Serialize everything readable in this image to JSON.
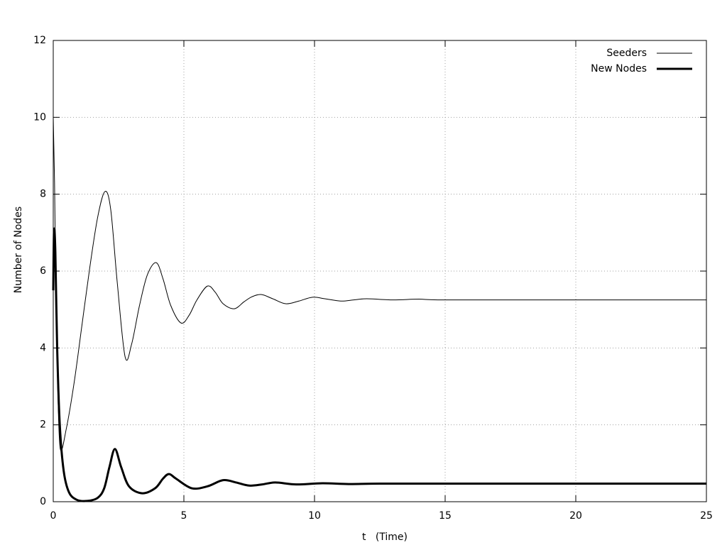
{
  "chart_data": {
    "type": "line",
    "xlabel": "t   (Time)",
    "ylabel": "Number of Nodes",
    "xlim": [
      0,
      25
    ],
    "xticks": [
      0,
      5,
      10,
      15,
      20,
      25
    ],
    "ylim": [
      0,
      12
    ],
    "yticks": [
      0,
      2,
      4,
      6,
      8,
      10,
      12
    ],
    "grid": true,
    "legend": "top-right",
    "series": [
      {
        "name": "Seeders",
        "color": "#000000",
        "width": 1,
        "x": [
          0,
          0.05,
          0.1,
          0.17,
          0.27,
          0.5,
          0.8,
          1.1,
          1.4,
          1.7,
          1.98,
          2.2,
          2.45,
          2.75,
          3.0,
          3.3,
          3.6,
          3.94,
          4.2,
          4.5,
          4.89,
          5.2,
          5.5,
          5.9,
          6.2,
          6.5,
          6.93,
          7.3,
          7.6,
          7.96,
          8.4,
          8.9,
          9.4,
          9.92,
          10.4,
          11,
          11.5,
          12,
          13,
          14,
          15,
          20,
          25
        ],
        "values": [
          10,
          8.3,
          5.5,
          3,
          1.37,
          1.9,
          3.1,
          4.6,
          6.1,
          7.4,
          8.07,
          7.6,
          5.7,
          3.77,
          4.1,
          5.1,
          5.9,
          6.22,
          5.8,
          5.1,
          4.65,
          4.85,
          5.25,
          5.61,
          5.45,
          5.15,
          5.02,
          5.2,
          5.33,
          5.39,
          5.28,
          5.15,
          5.22,
          5.32,
          5.28,
          5.22,
          5.25,
          5.28,
          5.25,
          5.27,
          5.25,
          5.25,
          5.25
        ]
      },
      {
        "name": "New Nodes",
        "color": "#000000",
        "width": 3,
        "x": [
          0,
          0.03,
          0.08,
          0.15,
          0.25,
          0.4,
          0.6,
          0.9,
          1.3,
          1.7,
          1.95,
          2.15,
          2.36,
          2.6,
          2.9,
          3.4,
          3.9,
          4.2,
          4.43,
          4.7,
          5.3,
          5.9,
          6.5,
          7.0,
          7.5,
          8.0,
          8.5,
          9.3,
          10.3,
          11.3,
          12.5,
          15,
          20,
          25
        ],
        "values": [
          5.5,
          7.05,
          6.5,
          4,
          2,
          0.8,
          0.25,
          0.05,
          0.02,
          0.1,
          0.35,
          0.9,
          1.37,
          0.9,
          0.4,
          0.22,
          0.35,
          0.6,
          0.72,
          0.6,
          0.35,
          0.4,
          0.56,
          0.5,
          0.42,
          0.45,
          0.5,
          0.45,
          0.48,
          0.46,
          0.47,
          0.47,
          0.47,
          0.47
        ]
      }
    ]
  }
}
